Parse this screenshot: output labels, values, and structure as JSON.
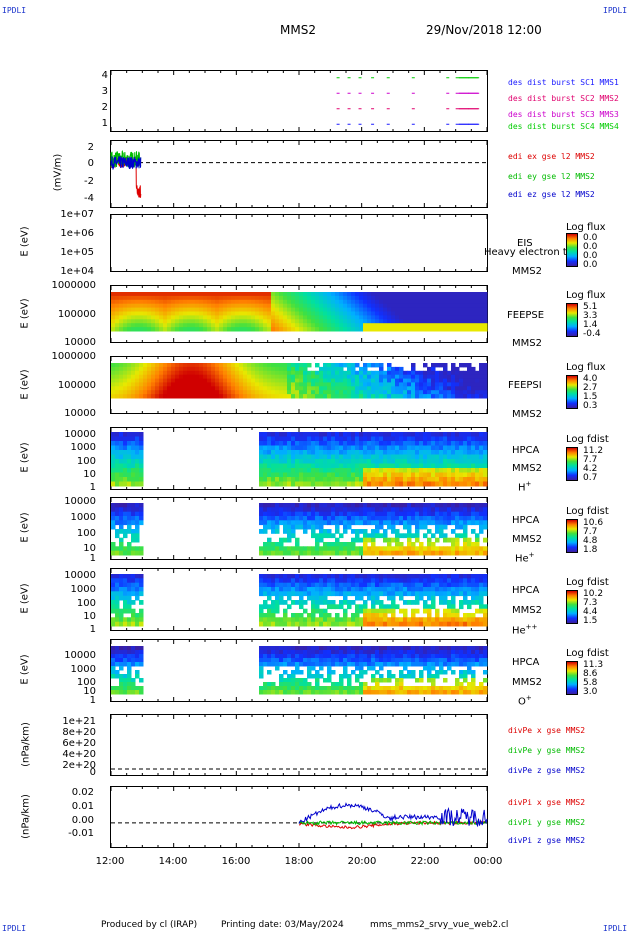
{
  "header": {
    "corner_tl": "IPDLI",
    "corner_tr": "IPDLI",
    "corner_bl": "IPDLI",
    "corner_br": "IPDLI",
    "spacecraft": "MMS2",
    "datetime": "29/Nov/2018 12:00"
  },
  "footer": {
    "produced_by": "Produced by cl (IRAP)",
    "printing_date": "Printing date: 03/May/2024",
    "script_name": "mms_mms2_srvy_vue_web2.cl"
  },
  "xaxis": {
    "ticks": [
      "12:00",
      "14:00",
      "16:00",
      "18:00",
      "20:00",
      "22:00",
      "00:00"
    ]
  },
  "chart_data": [
    {
      "type": "line",
      "panel": "burst",
      "yticks": [
        "4",
        "3",
        "2",
        "1"
      ],
      "ylim": [
        0.5,
        4.5
      ],
      "series": [
        {
          "name": "des dist burst SC1 MMS1",
          "color": "#1a1aff",
          "level": 1
        },
        {
          "name": "des dist burst SC2 MMS2",
          "color": "#e0006e",
          "level": 2
        },
        {
          "name": "des dist burst SC3 MMS3",
          "color": "#cc00cc",
          "level": 3
        },
        {
          "name": "des dist burst SC4 MMS4",
          "color": "#00cc00",
          "level": 4
        }
      ],
      "burst_hours": [
        19.2,
        19.55,
        19.9,
        20.3,
        20.8,
        21.6,
        22.7,
        23.1,
        23.4
      ]
    },
    {
      "type": "line",
      "panel": "edi",
      "ylabel": "(mV/m)",
      "yticks": [
        "2",
        "0",
        "-2",
        "-4"
      ],
      "ylim": [
        -5,
        2.5
      ],
      "series": [
        {
          "name": "edi ex gse l2 MMS2",
          "color": "#dd0000"
        },
        {
          "name": "edi ey gse l2 MMS2",
          "color": "#00bb00"
        },
        {
          "name": "edi ez gse l2 MMS2",
          "color": "#0000cc"
        }
      ],
      "x_range_hours": [
        12.0,
        12.95
      ]
    },
    {
      "type": "heatmap",
      "panel": "eis",
      "ylabel": "E (eV)",
      "yticks": [
        "1e+07",
        "1e+06",
        "1e+05",
        "1e+04"
      ],
      "instrument": "EIS",
      "instrument_note": "Heavy electron to",
      "spacecraft": "MMS2",
      "colorbar_title": "Log flux",
      "colorbar_values": [
        "0.0",
        "0.0",
        "0.0",
        "0.0"
      ]
    },
    {
      "type": "heatmap",
      "panel": "feepse",
      "ylabel": "E (eV)",
      "yticks": [
        "1000000",
        "100000",
        "10000"
      ],
      "instrument": "FEEPSE",
      "spacecraft": "MMS2",
      "colorbar_title": "Log flux",
      "colorbar_values": [
        "5.1",
        "3.3",
        "1.4",
        "-0.4"
      ]
    },
    {
      "type": "heatmap",
      "panel": "feepsi",
      "ylabel": "E (eV)",
      "yticks": [
        "1000000",
        "100000",
        "10000"
      ],
      "instrument": "FEEPSI",
      "spacecraft": "MMS2",
      "colorbar_title": "Log flux",
      "colorbar_values": [
        "4.0",
        "2.7",
        "1.5",
        "0.3"
      ]
    },
    {
      "type": "heatmap",
      "panel": "hpca_h",
      "ylabel": "E (eV)",
      "yticks": [
        "10000",
        "1000",
        "100",
        "10",
        "1"
      ],
      "instrument": "HPCA",
      "spacecraft": "MMS2",
      "species": "H",
      "species_sup": "+",
      "colorbar_title": "Log fdist",
      "colorbar_values": [
        "11.2",
        "7.7",
        "4.2",
        "0.7"
      ],
      "gap_hours": [
        12.9,
        16.7
      ]
    },
    {
      "type": "heatmap",
      "panel": "hpca_he",
      "ylabel": "E (eV)",
      "yticks": [
        "10000",
        "1000",
        "100",
        "10",
        "1"
      ],
      "instrument": "HPCA",
      "spacecraft": "MMS2",
      "species": "He",
      "species_sup": "+",
      "colorbar_title": "Log fdist",
      "colorbar_values": [
        "10.6",
        "7.7",
        "4.8",
        "1.8"
      ],
      "gap_hours": [
        12.9,
        16.7
      ]
    },
    {
      "type": "heatmap",
      "panel": "hpca_hepp",
      "ylabel": "E (eV)",
      "yticks": [
        "10000",
        "1000",
        "100",
        "10",
        "1"
      ],
      "instrument": "HPCA",
      "spacecraft": "MMS2",
      "species": "He",
      "species_sup": "++",
      "colorbar_title": "Log fdist",
      "colorbar_values": [
        "10.2",
        "7.3",
        "4.4",
        "1.5"
      ],
      "gap_hours": [
        12.9,
        16.7
      ]
    },
    {
      "type": "heatmap",
      "panel": "hpca_o",
      "ylabel": "E (eV)",
      "yticks": [
        "10000",
        "1000",
        "100",
        "10",
        "1"
      ],
      "instrument": "HPCA",
      "spacecraft": "MMS2",
      "species": "O",
      "species_sup": "+",
      "colorbar_title": "Log fdist",
      "colorbar_values": [
        "11.3",
        "8.6",
        "5.8",
        "3.0"
      ],
      "gap_hours": [
        12.9,
        16.7
      ]
    },
    {
      "type": "line",
      "panel": "divpe",
      "ylabel": "(nPa/km)",
      "yticks": [
        "1e+21",
        "8e+20",
        "6e+20",
        "4e+20",
        "2e+20",
        "0"
      ],
      "ylim": [
        0,
        1.05e+21
      ],
      "series": [
        {
          "name": "divPe x gse MMS2",
          "color": "#dd0000"
        },
        {
          "name": "divPe y gse MMS2",
          "color": "#00bb00"
        },
        {
          "name": "divPe z gse MMS2",
          "color": "#0000cc"
        }
      ]
    },
    {
      "type": "line",
      "panel": "divpi",
      "ylabel": "(nPa/km)",
      "yticks": [
        "0.02",
        "0.01",
        "0.00",
        "-0.01"
      ],
      "ylim": [
        -0.017,
        0.025
      ],
      "series": [
        {
          "name": "divPi x gse MMS2",
          "color": "#dd0000"
        },
        {
          "name": "divPi y gse MMS2",
          "color": "#00bb00"
        },
        {
          "name": "divPi z gse MMS2",
          "color": "#0000cc"
        }
      ],
      "x_range_hours": [
        18.0,
        24.0
      ]
    }
  ]
}
